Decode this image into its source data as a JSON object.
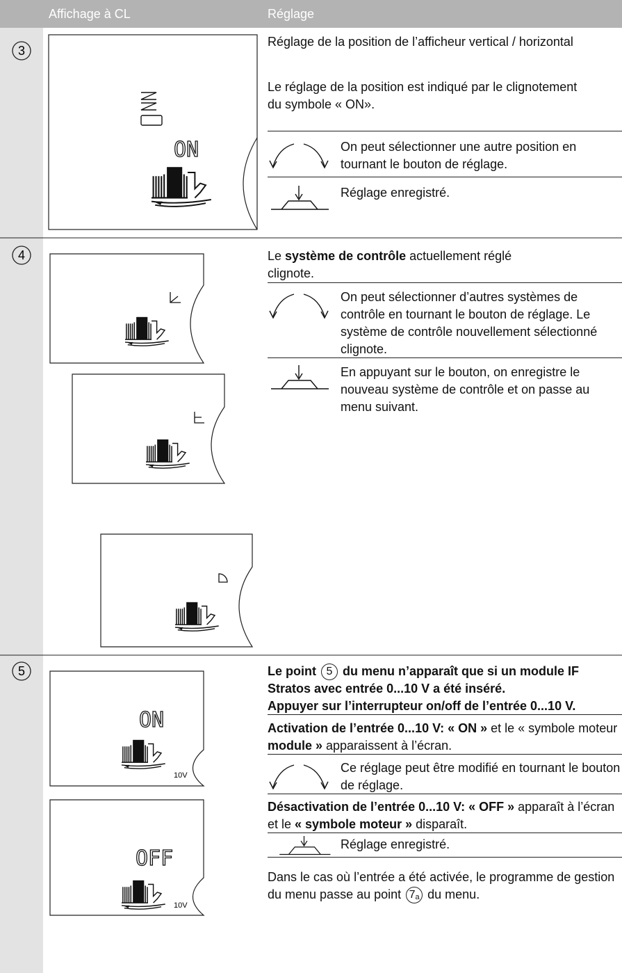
{
  "header": {
    "display_column": "Affichage à CL",
    "setting_column": "Réglage"
  },
  "steps": [
    {
      "number": "3",
      "lcd": "ON",
      "title": "Réglage de la position de l’afficheur vertical / horizontal",
      "note": "Le réglage de la position est indiqué par le clignotement du symbole « ON».",
      "turn": "On peut sélectionner une autre position en tournant le bouton de réglage.",
      "press": "Réglage enregistré."
    },
    {
      "number": "4",
      "intro": [
        "Le ",
        "système de contrôle",
        " actuellement réglé clignote."
      ],
      "turn": "On peut sélectionner d’autres systèmes de contrôle en tournant le bouton de réglage. Le système de contrôle nouvellement sélectionné clignote.",
      "press": "En appuyant sur le bouton, on enregistre le nouveau système de contrôle et on passe au menu suivant."
    },
    {
      "number": "5",
      "lcd": [
        {
          "state": "ON",
          "label": "10V"
        },
        {
          "state": "OFF",
          "label": "10V"
        }
      ],
      "intro": [
        "Le point ",
        "5",
        " du menu n’apparaît que si un module IF Stratos avec entrée 0...10 V a été inséré."
      ],
      "instruction": "Appuyer sur l’interrupteur on/off de l’entrée 0...10 V.",
      "activation": [
        "Activation de l’entrée 0...10 V: « ON »",
        " et le « symbole moteur ",
        "module »",
        " apparaissent à l’écran."
      ],
      "turn": "Ce réglage peut être modifié en tournant le bouton de réglage.",
      "deactivation": [
        "Désactivation de l’entrée 0...10 V: « OFF »",
        " apparaît à l’écran et le ",
        "« symbole moteur »",
        " disparaît."
      ],
      "press": "Réglage enregistré.",
      "final": [
        "Dans le cas où l’entrée a été activée, le programme de gestion du menu passe au point ",
        "7",
        "a",
        " du menu."
      ]
    }
  ]
}
